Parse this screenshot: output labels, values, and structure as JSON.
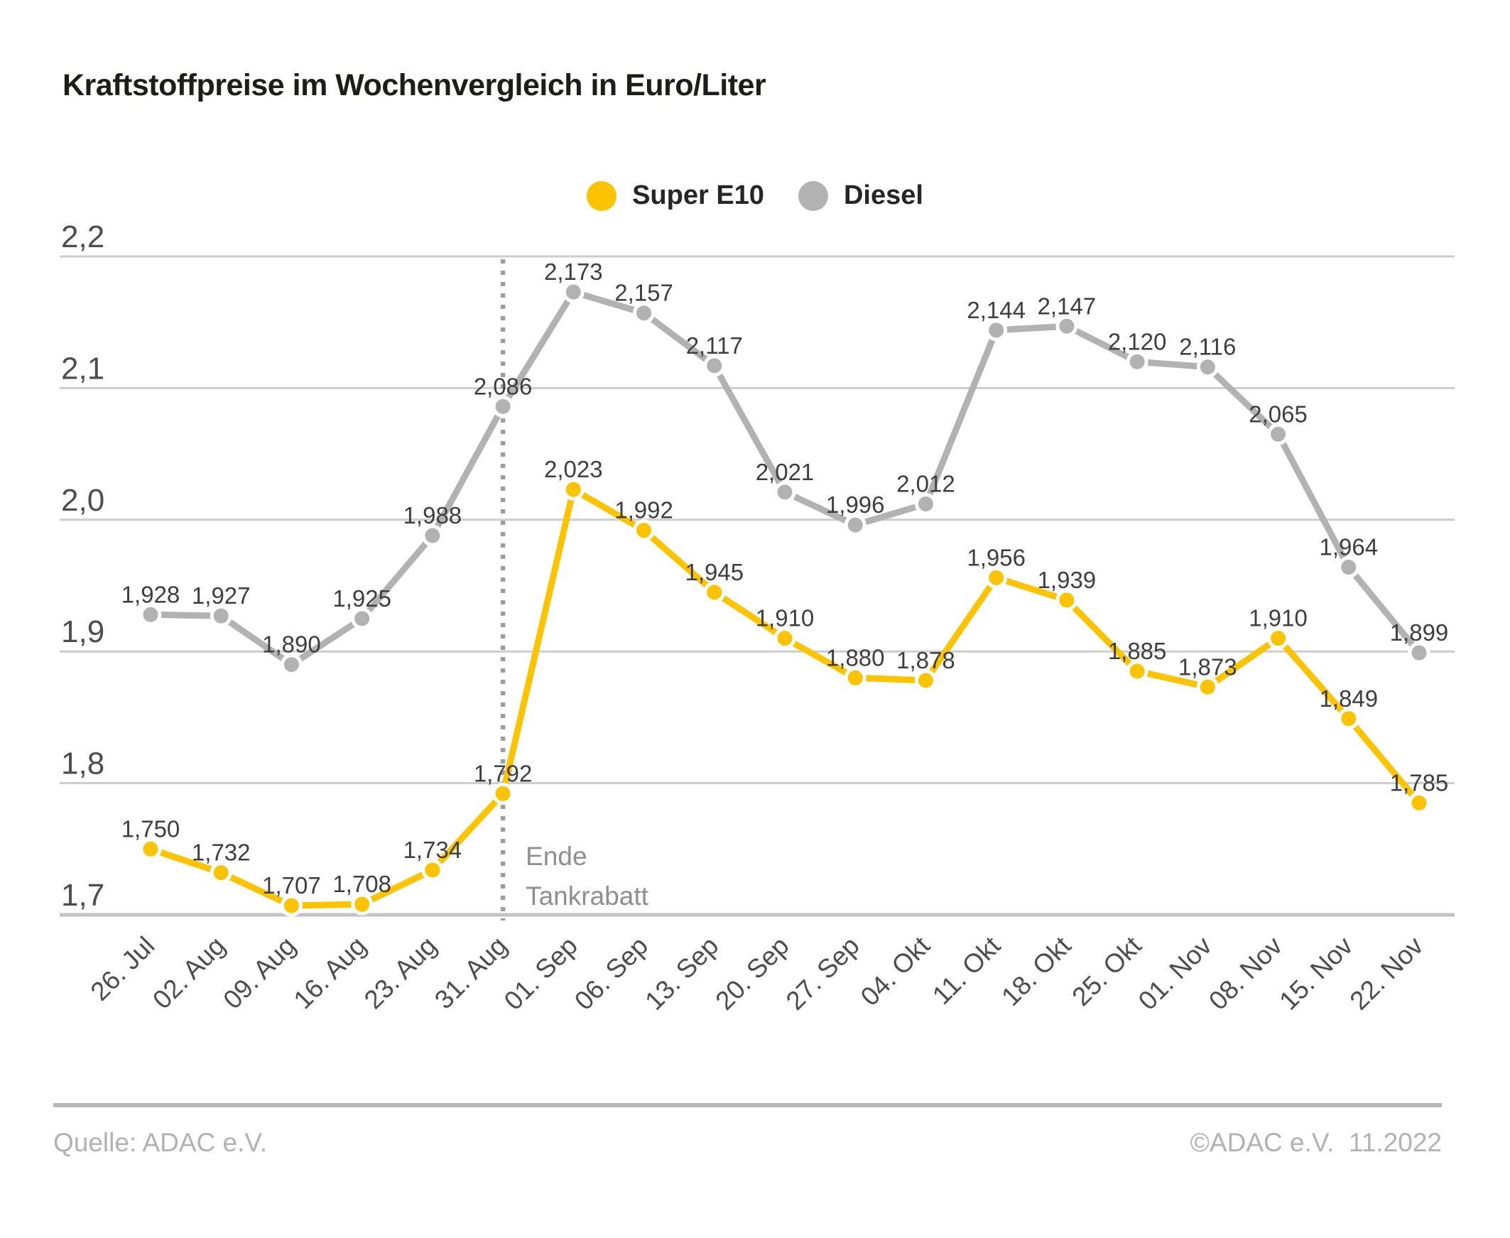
{
  "title": "Kraftstoffpreise im Wochenvergleich in Euro/Liter",
  "chart_data": {
    "type": "line",
    "unit": "Euro/Liter",
    "categories": [
      "26. Jul",
      "02. Aug",
      "09. Aug",
      "16. Aug",
      "23. Aug",
      "31. Aug",
      "01. Sep",
      "06. Sep",
      "13. Sep",
      "20. Sep",
      "27. Sep",
      "04. Okt",
      "11. Okt",
      "18. Okt",
      "25. Okt",
      "01. Nov",
      "08. Nov",
      "15. Nov",
      "22. Nov"
    ],
    "series": [
      {
        "name": "Super E10",
        "color": "#FCC300",
        "values": [
          1.75,
          1.732,
          1.707,
          1.708,
          1.734,
          1.792,
          2.023,
          1.992,
          1.945,
          1.91,
          1.88,
          1.878,
          1.956,
          1.939,
          1.885,
          1.873,
          1.91,
          1.849,
          1.785
        ],
        "labels": [
          "1,750",
          "1,732",
          "1,707",
          "1,708",
          "1,734",
          "1,792",
          "2,023",
          "1,992",
          "1,945",
          "1,910",
          "1,880",
          "1,878",
          "1,956",
          "1,939",
          "1,885",
          "1,873",
          "1,910",
          "1,849",
          "1,785"
        ]
      },
      {
        "name": "Diesel",
        "color": "#B2B2B2",
        "values": [
          1.928,
          1.927,
          1.89,
          1.925,
          1.988,
          2.086,
          2.173,
          2.157,
          2.117,
          2.021,
          1.996,
          2.012,
          2.144,
          2.147,
          2.12,
          2.116,
          2.065,
          1.964,
          1.899
        ],
        "labels": [
          "1,928",
          "1,927",
          "1,890",
          "1,925",
          "1,988",
          "2,086",
          "2,173",
          "2,157",
          "2,117",
          "2,021",
          "1,996",
          "2,012",
          "2,144",
          "2,147",
          "2,120",
          "2,116",
          "2,065",
          "1,964",
          "1,899"
        ]
      }
    ],
    "ylim": [
      1.7,
      2.2
    ],
    "ytick_step": 0.1,
    "ytick_labels": [
      "1,7",
      "1,8",
      "1,9",
      "2,0",
      "2,1",
      "2,2"
    ],
    "grid": true,
    "legend_position": "top-center",
    "annotation": {
      "category": "31. Aug",
      "line_style": "dotted",
      "label_lines": [
        "Ende",
        "Tankrabatt"
      ]
    },
    "colors": {
      "gridline": "#CDCDCD",
      "axis_line": "#C3C3C3",
      "data_label": "#3E3E3E",
      "tick_label": "#4D4D4D",
      "annotation_text": "#8F8F8F",
      "annotation_line": "#9E9E9E"
    }
  },
  "footer": {
    "source": "Quelle: ADAC e.V.",
    "copyright": "©ADAC e.V.  11.2022"
  }
}
